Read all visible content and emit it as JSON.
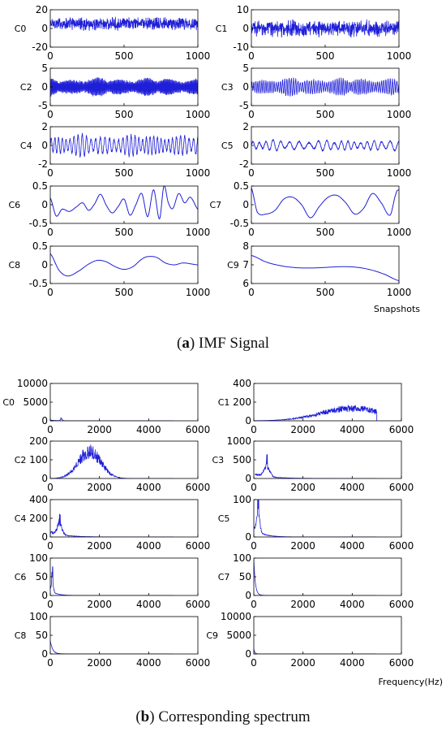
{
  "panels": {
    "a": {
      "caption_label": "a",
      "caption_text": "IMF Signal",
      "xlabel": "Snapshots"
    },
    "b": {
      "caption_label": "b",
      "caption_text": "Corresponding spectrum",
      "xlabel": "Frequency(Hz)"
    }
  },
  "colors": {
    "line": "#1f1fd8",
    "axis": "#000000",
    "text": "#000000"
  },
  "chart_data": [
    {
      "type": "line",
      "panel": "a",
      "name": "C0",
      "xlim": [
        0,
        1000
      ],
      "ylim": [
        -20,
        20
      ],
      "xticks": [
        0,
        500,
        1000
      ],
      "yticks": [
        20,
        0,
        -20
      ],
      "signal": {
        "kind": "noise",
        "amplitude": 8,
        "baseline": 5
      }
    },
    {
      "type": "line",
      "panel": "a",
      "name": "C1",
      "xlim": [
        0,
        1000
      ],
      "ylim": [
        -10,
        10
      ],
      "xticks": [
        0,
        500,
        1000
      ],
      "yticks": [
        10,
        0,
        -10
      ],
      "signal": {
        "kind": "noise",
        "amplitude": 5,
        "baseline": 0
      }
    },
    {
      "type": "line",
      "panel": "a",
      "name": "C2",
      "xlim": [
        0,
        1000
      ],
      "ylim": [
        -5,
        5
      ],
      "xticks": [
        0,
        500,
        1000
      ],
      "yticks": [
        5,
        0,
        -5
      ],
      "signal": {
        "kind": "osc",
        "amplitude": 2.5,
        "cycles": 150,
        "baseline": 0
      }
    },
    {
      "type": "line",
      "panel": "a",
      "name": "C3",
      "xlim": [
        0,
        1000
      ],
      "ylim": [
        -5,
        5
      ],
      "xticks": [
        0,
        500,
        1000
      ],
      "yticks": [
        5,
        0,
        -5
      ],
      "signal": {
        "kind": "osc",
        "amplitude": 2.4,
        "cycles": 70,
        "baseline": 0
      }
    },
    {
      "type": "line",
      "panel": "a",
      "name": "C4",
      "xlim": [
        0,
        1000
      ],
      "ylim": [
        -2,
        2
      ],
      "xticks": [
        0,
        500,
        1000
      ],
      "yticks": [
        2,
        0,
        -2
      ],
      "signal": {
        "kind": "osc",
        "amplitude": 1.2,
        "cycles": 36,
        "baseline": 0
      }
    },
    {
      "type": "line",
      "panel": "a",
      "name": "C5",
      "xlim": [
        0,
        1000
      ],
      "ylim": [
        -2,
        2
      ],
      "xticks": [
        0,
        500,
        1000
      ],
      "yticks": [
        2,
        0,
        -2
      ],
      "signal": {
        "kind": "osc",
        "amplitude": 0.6,
        "cycles": 19,
        "baseline": 0
      }
    },
    {
      "type": "line",
      "panel": "a",
      "name": "C6",
      "xlim": [
        0,
        1000
      ],
      "ylim": [
        -0.5,
        0.5
      ],
      "xticks": [
        0,
        500,
        1000
      ],
      "yticks": [
        0.5,
        0,
        -0.5
      ],
      "signal": {
        "kind": "points",
        "x": [
          0,
          40,
          80,
          130,
          180,
          220,
          260,
          300,
          340,
          380,
          420,
          460,
          500,
          540,
          580,
          620,
          660,
          700,
          740,
          770,
          800,
          830,
          870,
          910,
          950,
          1000
        ],
        "y": [
          0.18,
          -0.3,
          -0.12,
          -0.18,
          -0.05,
          0.05,
          -0.15,
          0.02,
          0.28,
          -0.02,
          -0.22,
          -0.05,
          0.15,
          -0.28,
          0.0,
          0.3,
          -0.32,
          0.4,
          -0.38,
          0.5,
          0.05,
          -0.1,
          0.3,
          0.05,
          0.2,
          -0.12
        ]
      }
    },
    {
      "type": "line",
      "panel": "a",
      "name": "C7",
      "xlim": [
        0,
        1000
      ],
      "ylim": [
        -0.5,
        0.5
      ],
      "xticks": [
        0,
        500,
        1000
      ],
      "yticks": [
        0.5,
        0,
        -0.5
      ],
      "signal": {
        "kind": "points",
        "x": [
          0,
          40,
          100,
          160,
          220,
          280,
          340,
          400,
          460,
          520,
          580,
          640,
          700,
          760,
          820,
          880,
          940,
          980,
          1000
        ],
        "y": [
          0.45,
          -0.2,
          -0.25,
          -0.15,
          0.15,
          0.2,
          0.0,
          -0.35,
          -0.05,
          0.2,
          0.25,
          0.05,
          -0.25,
          -0.1,
          0.3,
          0.05,
          -0.28,
          0.3,
          0.4
        ]
      }
    },
    {
      "type": "line",
      "panel": "a",
      "name": "C8",
      "xlim": [
        0,
        1000
      ],
      "ylim": [
        -0.5,
        0.5
      ],
      "xticks": [
        0,
        500,
        1000
      ],
      "yticks": [
        0.5,
        0,
        -0.5
      ],
      "signal": {
        "kind": "points",
        "x": [
          0,
          60,
          120,
          200,
          260,
          320,
          380,
          440,
          500,
          560,
          620,
          660,
          720,
          780,
          840,
          900,
          1000
        ],
        "y": [
          0.3,
          -0.15,
          -0.3,
          -0.15,
          0.02,
          0.12,
          0.08,
          -0.05,
          -0.12,
          -0.05,
          0.15,
          0.22,
          0.2,
          0.05,
          0.0,
          0.05,
          0.0
        ]
      }
    },
    {
      "type": "line",
      "panel": "a",
      "name": "C9",
      "xlim": [
        0,
        1000
      ],
      "ylim": [
        6,
        8
      ],
      "xticks": [
        0,
        500,
        1000
      ],
      "yticks": [
        8,
        7,
        6
      ],
      "signal": {
        "kind": "points",
        "x": [
          0,
          100,
          200,
          300,
          400,
          500,
          600,
          700,
          800,
          900,
          1000
        ],
        "y": [
          7.5,
          7.15,
          6.95,
          6.85,
          6.83,
          6.86,
          6.9,
          6.88,
          6.75,
          6.5,
          6.15
        ]
      }
    },
    {
      "type": "line",
      "panel": "b",
      "name": "C0",
      "xlim": [
        0,
        6000
      ],
      "ylim": [
        0,
        10000
      ],
      "xticks": [
        0,
        2000,
        4000,
        6000
      ],
      "yticks": [
        10000,
        5000,
        0
      ],
      "signal": {
        "kind": "spec",
        "center": 450,
        "width": 60,
        "peak": 700,
        "noise": 120,
        "start": 20
      }
    },
    {
      "type": "line",
      "panel": "b",
      "name": "C1",
      "xlim": [
        0,
        6000
      ],
      "ylim": [
        0,
        400
      ],
      "xticks": [
        0,
        2000,
        4000,
        6000
      ],
      "yticks": [
        400,
        200,
        0
      ],
      "signal": {
        "kind": "broad",
        "center": 4000,
        "width": 1800,
        "peak": 95,
        "noise": 75,
        "start": 0
      }
    },
    {
      "type": "line",
      "panel": "b",
      "name": "C2",
      "xlim": [
        0,
        6000
      ],
      "ylim": [
        0,
        200
      ],
      "xticks": [
        0,
        2000,
        4000,
        6000
      ],
      "yticks": [
        200,
        100,
        0
      ],
      "signal": {
        "kind": "broad",
        "center": 1600,
        "width": 650,
        "peak": 105,
        "noise": 80,
        "start": 0
      }
    },
    {
      "type": "line",
      "panel": "b",
      "name": "C3",
      "xlim": [
        0,
        6000
      ],
      "ylim": [
        0,
        1000
      ],
      "xticks": [
        0,
        2000,
        4000,
        6000
      ],
      "yticks": [
        1000,
        500,
        0
      ],
      "signal": {
        "kind": "spec",
        "center": 530,
        "width": 160,
        "peak": 380,
        "noise": 220,
        "start": 50
      }
    },
    {
      "type": "line",
      "panel": "b",
      "name": "C4",
      "xlim": [
        0,
        6000
      ],
      "ylim": [
        0,
        400
      ],
      "xticks": [
        0,
        2000,
        4000,
        6000
      ],
      "yticks": [
        400,
        200,
        0
      ],
      "signal": {
        "kind": "spec",
        "center": 380,
        "width": 140,
        "peak": 150,
        "noise": 110,
        "start": 10
      }
    },
    {
      "type": "line",
      "panel": "b",
      "name": "C5",
      "xlim": [
        0,
        6000
      ],
      "ylim": [
        0,
        100
      ],
      "xticks": [
        0,
        2000,
        4000,
        6000
      ],
      "yticks": [
        100,
        0
      ],
      "signal": {
        "kind": "spec",
        "center": 180,
        "width": 90,
        "peak": 75,
        "noise": 30,
        "start": 5
      }
    },
    {
      "type": "line",
      "panel": "b",
      "name": "C6",
      "xlim": [
        0,
        6000
      ],
      "ylim": [
        0,
        100
      ],
      "xticks": [
        0,
        2000,
        4000,
        6000
      ],
      "yticks": [
        100,
        50,
        0
      ],
      "signal": {
        "kind": "spec",
        "center": 80,
        "width": 60,
        "peak": 45,
        "noise": 18,
        "start": 5
      }
    },
    {
      "type": "line",
      "panel": "b",
      "name": "C7",
      "xlim": [
        0,
        6000
      ],
      "ylim": [
        0,
        100
      ],
      "xticks": [
        0,
        2000,
        4000,
        6000
      ],
      "yticks": [
        100,
        50,
        0
      ],
      "signal": {
        "kind": "decay",
        "peak": 95,
        "width": 60,
        "noise": 4,
        "start": 0
      }
    },
    {
      "type": "line",
      "panel": "b",
      "name": "C8",
      "xlim": [
        0,
        6000
      ],
      "ylim": [
        0,
        100
      ],
      "xticks": [
        0,
        2000,
        4000,
        6000
      ],
      "yticks": [
        100,
        50,
        0
      ],
      "signal": {
        "kind": "decay",
        "peak": 35,
        "width": 90,
        "noise": 3,
        "start": 0
      }
    },
    {
      "type": "line",
      "panel": "b",
      "name": "C9",
      "xlim": [
        0,
        6000
      ],
      "ylim": [
        0,
        10000
      ],
      "xticks": [
        0,
        2000,
        4000,
        6000
      ],
      "yticks": [
        10000,
        5000,
        0
      ],
      "signal": {
        "kind": "decay",
        "peak": 1400,
        "width": 40,
        "noise": 30,
        "start": 0
      }
    }
  ]
}
